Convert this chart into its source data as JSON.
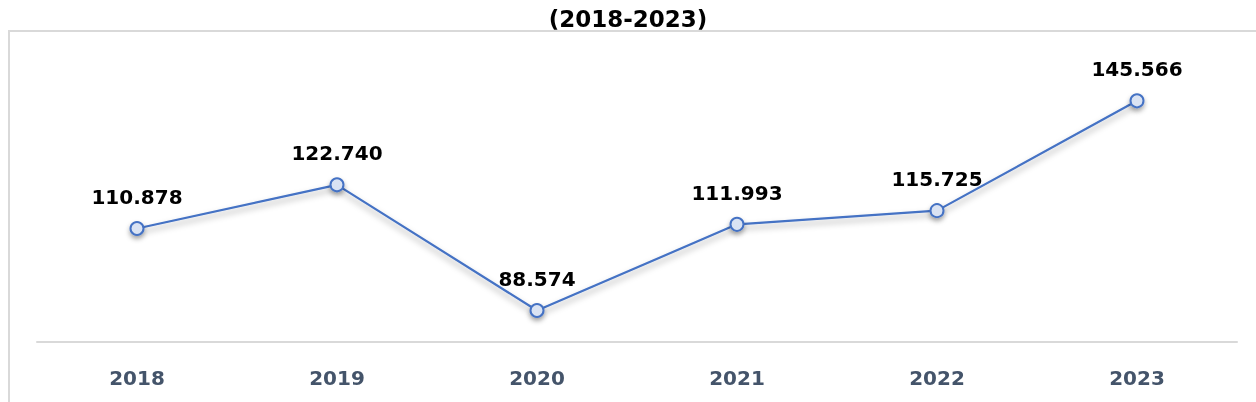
{
  "chart_data": {
    "type": "line",
    "title": "(2018-2023)",
    "categories": [
      "2018",
      "2019",
      "2020",
      "2021",
      "2022",
      "2023"
    ],
    "series": [
      {
        "color": "#4472c4",
        "values": [
          110.878,
          122.74,
          88.574,
          111.993,
          115.725,
          145.566
        ],
        "value_labels": [
          "110.878",
          "122.740",
          "88.574",
          "111.993",
          "115.725",
          "145.566"
        ]
      }
    ],
    "marker": "circle",
    "line_style": "solid",
    "tick_labels": "x"
  }
}
